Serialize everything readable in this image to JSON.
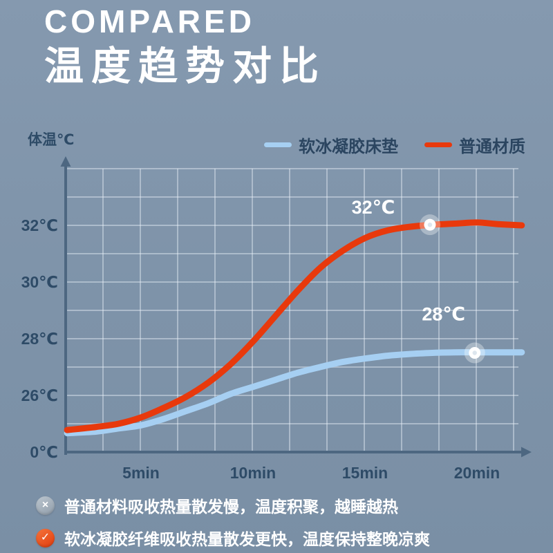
{
  "page": {
    "background": "#7e93a9",
    "title_en": "COMPARED",
    "title_zh": "温度趋势对比"
  },
  "chart_data": {
    "type": "line",
    "title": "温度趋势对比",
    "ylabel": "体温℃",
    "x_unit": "min",
    "grid": true,
    "legend_position": "top-right",
    "axis_break_below": 26,
    "x_ticks": [
      {
        "value": 5,
        "label": "5min"
      },
      {
        "value": 10,
        "label": "10min"
      },
      {
        "value": 15,
        "label": "15min"
      },
      {
        "value": 20,
        "label": "20min"
      }
    ],
    "y_ticks": [
      {
        "value": 32,
        "label": "32℃"
      },
      {
        "value": 30,
        "label": "30℃"
      },
      {
        "value": 28,
        "label": "28℃"
      },
      {
        "value": 26,
        "label": "26℃"
      },
      {
        "value": 0,
        "label": "0℃"
      }
    ],
    "series": [
      {
        "name": "软冰凝胶床垫",
        "color": "#a6cff2",
        "points": [
          [
            1.7,
            24.8
          ],
          [
            3,
            24.85
          ],
          [
            4,
            24.95
          ],
          [
            5,
            25.05
          ],
          [
            6,
            25.25
          ],
          [
            7,
            25.5
          ],
          [
            8,
            25.75
          ],
          [
            9,
            26.05
          ],
          [
            10,
            26.3
          ],
          [
            11,
            26.55
          ],
          [
            12,
            26.8
          ],
          [
            13,
            27.0
          ],
          [
            14,
            27.18
          ],
          [
            15,
            27.3
          ],
          [
            16,
            27.4
          ],
          [
            17,
            27.46
          ],
          [
            18,
            27.5
          ],
          [
            19,
            27.52
          ],
          [
            20,
            27.52
          ],
          [
            21,
            27.52
          ],
          [
            22,
            27.52
          ]
        ],
        "marker": {
          "x": 19.9,
          "y": 27.5,
          "label": "28℃",
          "label_offset": [
            -45,
            -47
          ]
        }
      },
      {
        "name": "普通材质",
        "color": "#e8390c",
        "points": [
          [
            1.7,
            24.9
          ],
          [
            3,
            25.0
          ],
          [
            4,
            25.1
          ],
          [
            5,
            25.3
          ],
          [
            6,
            25.6
          ],
          [
            7,
            25.95
          ],
          [
            8,
            26.45
          ],
          [
            9,
            27.1
          ],
          [
            10,
            27.9
          ],
          [
            11,
            28.8
          ],
          [
            12,
            29.7
          ],
          [
            13,
            30.5
          ],
          [
            14,
            31.1
          ],
          [
            15,
            31.55
          ],
          [
            16,
            31.82
          ],
          [
            17,
            31.95
          ],
          [
            18,
            32.02
          ],
          [
            19,
            32.06
          ],
          [
            20,
            32.1
          ],
          [
            21,
            32.04
          ],
          [
            22,
            32.0
          ]
        ],
        "marker": {
          "x": 17.9,
          "y": 32.02,
          "label": "32℃",
          "label_offset": [
            -82,
            -16
          ]
        }
      }
    ]
  },
  "footnotes": [
    {
      "icon": "cross",
      "icon_color": "#a9b3bd",
      "text": "普通材料吸收热量散发慢，温度积聚，越睡越热"
    },
    {
      "icon": "check",
      "icon_color": "#ec5b28",
      "text": "软冰凝胶纤维吸收热量散发更快，温度保持整晚凉爽"
    }
  ]
}
